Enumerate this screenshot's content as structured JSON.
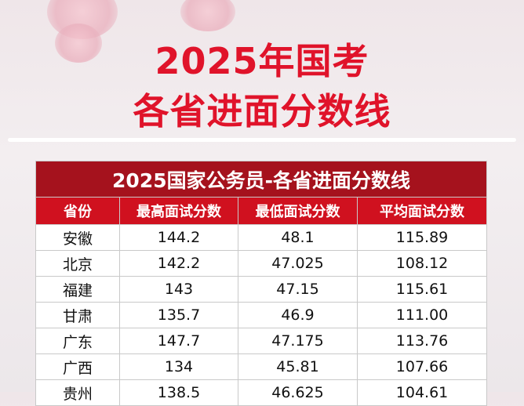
{
  "header": {
    "title_line1": "2025年国考",
    "title_line2": "各省进面分数线"
  },
  "table": {
    "title": "2025国家公务员-各省进面分数线",
    "columns": [
      "省份",
      "最高面试分数",
      "最低面试分数",
      "平均面试分数"
    ],
    "rows": [
      [
        "安徽",
        "144.2",
        "48.1",
        "115.89"
      ],
      [
        "北京",
        "142.2",
        "47.025",
        "108.12"
      ],
      [
        "福建",
        "143",
        "47.15",
        "115.61"
      ],
      [
        "甘肃",
        "135.7",
        "46.9",
        "111.00"
      ],
      [
        "广东",
        "147.7",
        "47.175",
        "113.76"
      ],
      [
        "广西",
        "134",
        "45.81",
        "107.66"
      ],
      [
        "贵州",
        "138.5",
        "46.625",
        "104.61"
      ]
    ]
  }
}
